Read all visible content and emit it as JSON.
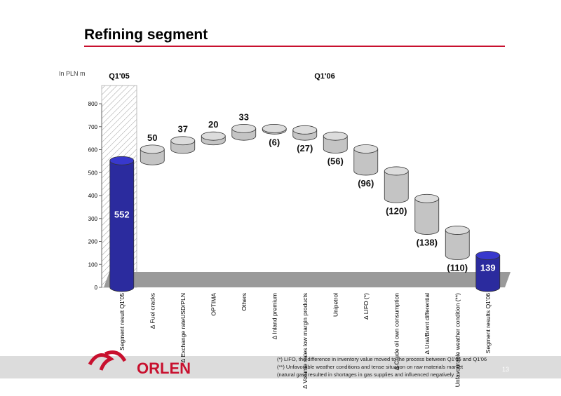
{
  "header": {
    "title": "Refining segment",
    "unit": "In PLN m",
    "period_left": "Q1'05",
    "period_right": "Q1'06"
  },
  "chart_data": {
    "type": "waterfall",
    "categories": [
      "Segment result Q1'05",
      "∆ Fuel cracks",
      "∆ Exchange rateUSD/PLN",
      "OPTIMA",
      "Others",
      "∆ Inland premium",
      "∆ Volume sales low margin products",
      "Unipetrol",
      "∆ LIFO (*)",
      "∆ Crude oil own consumption",
      "∆ Ural/Brent differential",
      "Unfavourable weather condition (**)",
      "Segment results Q1'06"
    ],
    "values": [
      552,
      50,
      37,
      20,
      33,
      -6,
      -27,
      -56,
      -96,
      -120,
      -138,
      -110,
      139
    ],
    "value_labels": [
      "552",
      "50",
      "37",
      "20",
      "33",
      "(6)",
      "(27)",
      "(56)",
      "(96)",
      "(120)",
      "(138)",
      "(110)",
      "139"
    ],
    "measures": [
      "total",
      "relative",
      "relative",
      "relative",
      "relative",
      "relative",
      "relative",
      "relative",
      "relative",
      "relative",
      "relative",
      "relative",
      "total"
    ],
    "total_color": "#2b2b9e",
    "color": "#c4c4c4",
    "ylim": [
      0,
      800
    ],
    "yticks": [
      0,
      100,
      200,
      300,
      400,
      500,
      600,
      700,
      800
    ]
  },
  "footer": {
    "logo": "ORLEN",
    "notes": [
      "(*) LIFO, the difference in inventory value moved to the process between Q1'05 and Q1'06",
      "(**) Unfavorable weather conditions and tense situation on raw materials market",
      "(natural gas) resulted in shortages in gas supplies and influenced negatively"
    ],
    "page": "13"
  }
}
